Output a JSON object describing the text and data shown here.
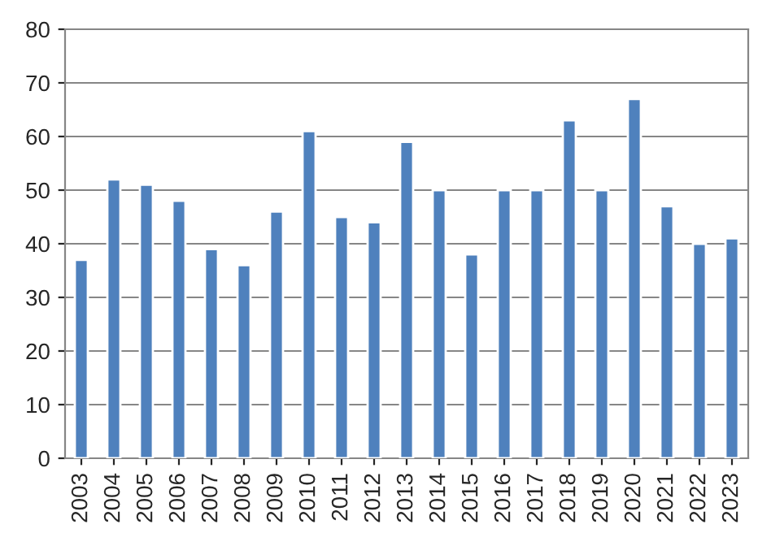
{
  "chart_data": {
    "type": "bar",
    "categories": [
      "2003",
      "2004",
      "2005",
      "2006",
      "2007",
      "2008",
      "2009",
      "2010",
      "2011",
      "2012",
      "2013",
      "2014",
      "2015",
      "2016",
      "2017",
      "2018",
      "2019",
      "2020",
      "2021",
      "2022",
      "2023"
    ],
    "values": [
      37,
      52,
      51,
      48,
      39,
      36,
      46,
      61,
      45,
      44,
      59,
      50,
      38,
      50,
      50,
      63,
      50,
      67,
      47,
      40,
      41
    ],
    "color": "#4f81bd",
    "ylim": [
      0,
      80
    ],
    "yticks": [
      0,
      10,
      20,
      30,
      40,
      50,
      60,
      70,
      80
    ],
    "grid": "y",
    "legend": false
  }
}
